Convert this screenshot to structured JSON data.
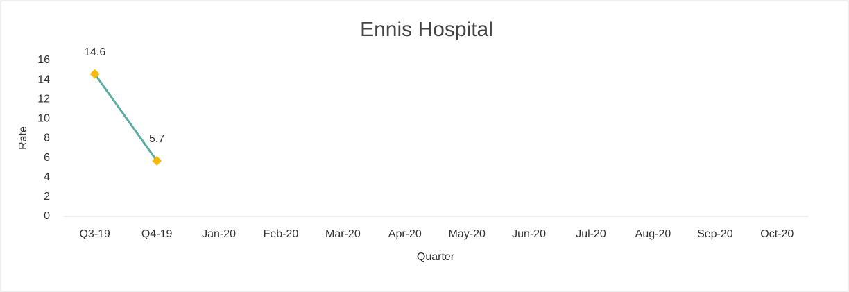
{
  "chart_data": {
    "type": "line",
    "title": "Ennis Hospital",
    "x_label": "Quarter",
    "y_label": "Rate",
    "categories": [
      "Q3-19",
      "Q4-19",
      "Jan-20",
      "Feb-20",
      "Mar-20",
      "Apr-20",
      "May-20",
      "Jun-20",
      "Jul-20",
      "Aug-20",
      "Sep-20",
      "Oct-20"
    ],
    "series": [
      {
        "name": "Rate",
        "color": "#5aaba0",
        "marker_color": "#f6b910",
        "values": [
          14.6,
          5.7,
          null,
          null,
          null,
          null,
          null,
          null,
          null,
          null,
          null,
          null
        ]
      }
    ],
    "ylim": [
      0,
      16
    ],
    "yticks": [
      0,
      2,
      4,
      6,
      8,
      10,
      12,
      14,
      16
    ],
    "grid": false,
    "data_labels": true
  }
}
